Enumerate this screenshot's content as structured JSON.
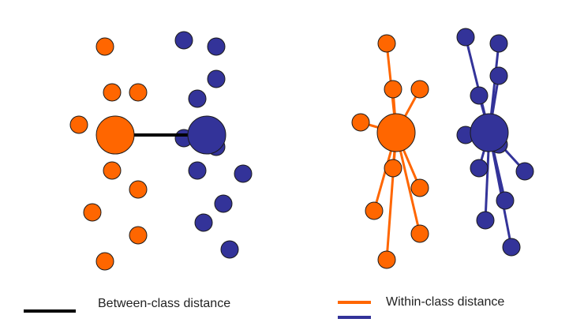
{
  "colors": {
    "orange": "#ff6600",
    "blue": "#333399",
    "between_line": "#000000",
    "outline": "#1a1a1a"
  },
  "legend": {
    "between_label": "Between-class distance",
    "within_label": "Within-class distance"
  }
}
